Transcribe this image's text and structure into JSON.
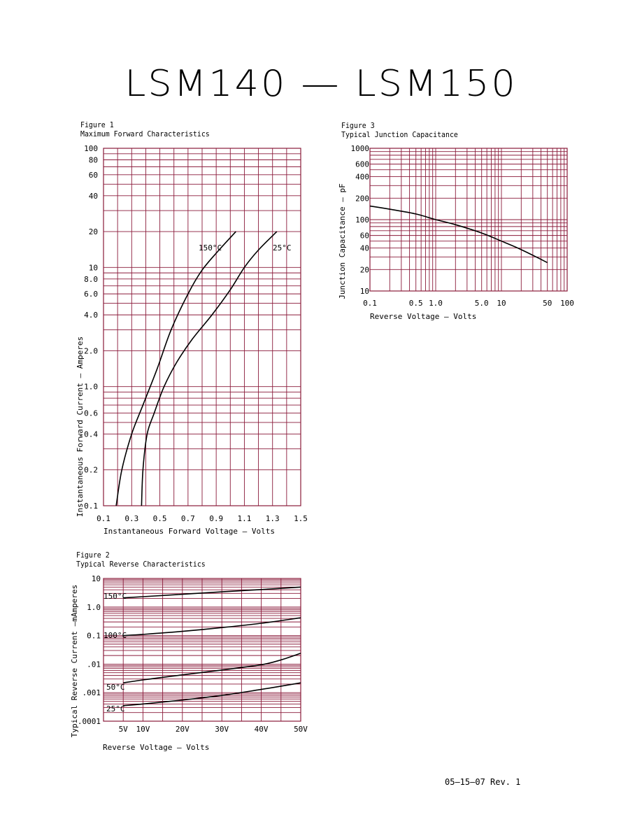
{
  "page": {
    "title": "LSM140 — LSM150",
    "footer": "05–15–07 Rev. 1"
  },
  "colors": {
    "grid": "#8a1a3a",
    "curve": "#000000"
  },
  "chart_data": [
    {
      "id": "fig1",
      "type": "line",
      "figure_label": "Figure 1",
      "title": "Maximum Forward Characteristics",
      "xlabel": "Instantaneous Forward Voltage – Volts",
      "ylabel": "Instantaneous Forward Current – Amperes",
      "xscale": "linear",
      "yscale": "log",
      "xlim": [
        0.1,
        1.5
      ],
      "ylim": [
        0.1,
        100
      ],
      "grid": true,
      "x_tick_labels": [
        "0.1",
        "0.3",
        "0.5",
        "0.7",
        "0.9",
        "1.1",
        "1.3",
        "1.5"
      ],
      "x_tick_values": [
        0.1,
        0.3,
        0.5,
        0.7,
        0.9,
        1.1,
        1.3,
        1.5
      ],
      "y_tick_labels": [
        "100",
        "80",
        "60",
        "40",
        "20",
        "10",
        "8.0",
        "6.0",
        "4.0",
        "2.0",
        "1.0",
        "0.6",
        "0.4",
        "0.2",
        "0.1"
      ],
      "y_tick_values": [
        100,
        80,
        60,
        40,
        20,
        10,
        8,
        6,
        4,
        2,
        1,
        0.6,
        0.4,
        0.2,
        0.1
      ],
      "series": [
        {
          "name": "150°C",
          "x": [
            0.19,
            0.23,
            0.3,
            0.38,
            0.48,
            0.58,
            0.7,
            0.8,
            0.92,
            1.04
          ],
          "y": [
            0.1,
            0.2,
            0.4,
            0.7,
            1.4,
            3.0,
            6.0,
            9.5,
            14.0,
            20.0
          ]
        },
        {
          "name": "25°C",
          "x": [
            0.37,
            0.38,
            0.41,
            0.46,
            0.53,
            0.62,
            0.73,
            0.87,
            1.0,
            1.1,
            1.2,
            1.33
          ],
          "y": [
            0.1,
            0.2,
            0.4,
            0.6,
            1.0,
            1.6,
            2.5,
            4.0,
            6.5,
            10.0,
            14.0,
            20.0
          ]
        }
      ]
    },
    {
      "id": "fig2",
      "type": "line",
      "figure_label": "Figure 2",
      "title": "Typical Reverse Characteristics",
      "xlabel": "Reverse Voltage – Volts",
      "ylabel": "Typical Reverse Current –mAmperes",
      "xscale": "linear",
      "yscale": "log",
      "xlim": [
        0,
        50
      ],
      "ylim": [
        0.0001,
        10
      ],
      "grid": true,
      "x_tick_labels": [
        "5V",
        "10V",
        "20V",
        "30V",
        "40V",
        "50V"
      ],
      "x_tick_values": [
        5,
        10,
        20,
        30,
        40,
        50
      ],
      "y_tick_labels": [
        "10",
        "1.0",
        "0.1",
        ".01",
        ".001",
        ".0001"
      ],
      "y_tick_values": [
        10,
        1,
        0.1,
        0.01,
        0.001,
        0.0001
      ],
      "series": [
        {
          "name": "150°C",
          "x": [
            5,
            10,
            20,
            30,
            40,
            50
          ],
          "y": [
            2.1,
            2.3,
            2.8,
            3.4,
            4.1,
            5.0
          ]
        },
        {
          "name": "100°C",
          "x": [
            5,
            10,
            20,
            30,
            40,
            50
          ],
          "y": [
            0.1,
            0.11,
            0.14,
            0.19,
            0.27,
            0.42
          ]
        },
        {
          "name": "50°C",
          "x": [
            5,
            10,
            20,
            30,
            40,
            45,
            50
          ],
          "y": [
            0.0022,
            0.0028,
            0.0042,
            0.0062,
            0.0095,
            0.014,
            0.024
          ]
        },
        {
          "name": "25°C",
          "x": [
            5,
            10,
            20,
            30,
            40,
            50
          ],
          "y": [
            0.00035,
            0.0004,
            0.00055,
            0.0008,
            0.0013,
            0.0022
          ]
        }
      ]
    },
    {
      "id": "fig3",
      "type": "line",
      "figure_label": "Figure 3",
      "title": "Typical Junction Capacitance",
      "xlabel": "Reverse Voltage – Volts",
      "ylabel": "Junction Capacitance – pF",
      "xscale": "log",
      "yscale": "log",
      "xlim": [
        0.1,
        100
      ],
      "ylim": [
        10,
        1000
      ],
      "grid": true,
      "x_tick_labels": [
        "0.1",
        "0.5",
        "1.0",
        "5.0",
        "10",
        "50",
        "100"
      ],
      "x_tick_values": [
        0.1,
        0.5,
        1,
        5,
        10,
        50,
        100
      ],
      "y_tick_labels": [
        "1000",
        "600",
        "400",
        "200",
        "100",
        "60",
        "40",
        "20",
        "10"
      ],
      "y_tick_values": [
        1000,
        600,
        400,
        200,
        100,
        60,
        40,
        20,
        10
      ],
      "series": [
        {
          "x": [
            0.1,
            0.2,
            0.5,
            1,
            2,
            5,
            10,
            20,
            50
          ],
          "y": [
            155,
            140,
            120,
            100,
            85,
            65,
            50,
            38,
            25
          ]
        }
      ]
    }
  ]
}
